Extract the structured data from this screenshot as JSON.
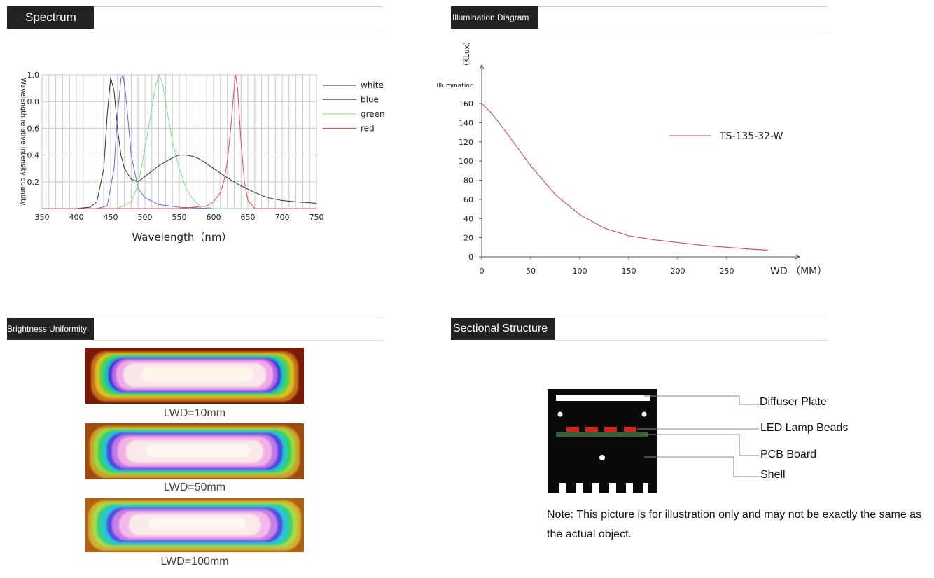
{
  "sections": {
    "spectrum": "Spectrum",
    "illumination": "Illumination Diagram",
    "uniformity": "Brightness Uniformity",
    "structure": "Sectional Structure"
  },
  "chart_data": [
    {
      "type": "line",
      "xlabel": "Wavelength（nm）",
      "ylabel": "Wavelength relative intensity quantity",
      "xlim": [
        350,
        750
      ],
      "ylim": [
        0,
        1.0
      ],
      "x_ticks": [
        "350",
        "400",
        "450",
        "500",
        "550",
        "600",
        "650",
        "700",
        "750"
      ],
      "y_ticks": [
        "1.0",
        "0.8",
        "0.6",
        "0.4",
        "0.2"
      ],
      "grid": true,
      "legend": "right",
      "series": [
        {
          "name": "white",
          "color": "#333333",
          "x": [
            350,
            400,
            420,
            430,
            440,
            445,
            450,
            455,
            460,
            465,
            470,
            480,
            490,
            500,
            510,
            520,
            530,
            540,
            550,
            560,
            570,
            580,
            600,
            620,
            640,
            660,
            680,
            700,
            720,
            750
          ],
          "y": [
            0,
            0,
            0.01,
            0.05,
            0.3,
            0.7,
            0.98,
            0.88,
            0.6,
            0.4,
            0.3,
            0.22,
            0.2,
            0.24,
            0.28,
            0.32,
            0.35,
            0.38,
            0.4,
            0.4,
            0.39,
            0.37,
            0.3,
            0.23,
            0.17,
            0.12,
            0.08,
            0.06,
            0.05,
            0.04
          ]
        },
        {
          "name": "blue",
          "color": "#6a6ad0",
          "x": [
            350,
            430,
            445,
            455,
            460,
            465,
            468,
            472,
            480,
            490,
            500,
            520,
            550,
            600,
            750
          ],
          "y": [
            0,
            0,
            0.02,
            0.3,
            0.7,
            0.97,
            1.0,
            0.85,
            0.4,
            0.15,
            0.08,
            0.03,
            0.01,
            0,
            0
          ]
        },
        {
          "name": "green",
          "color": "#7fe08a",
          "x": [
            350,
            460,
            480,
            490,
            500,
            510,
            515,
            520,
            525,
            530,
            540,
            550,
            560,
            570,
            580,
            600,
            750
          ],
          "y": [
            0,
            0,
            0.05,
            0.18,
            0.45,
            0.75,
            0.9,
            1.0,
            0.95,
            0.8,
            0.5,
            0.3,
            0.15,
            0.07,
            0.02,
            0,
            0
          ]
        },
        {
          "name": "red",
          "color": "#e05050",
          "x": [
            350,
            550,
            590,
            600,
            610,
            615,
            620,
            625,
            630,
            632,
            635,
            640,
            645,
            650,
            660,
            750
          ],
          "y": [
            0,
            0,
            0.02,
            0.05,
            0.12,
            0.2,
            0.35,
            0.6,
            0.9,
            1.0,
            0.9,
            0.5,
            0.2,
            0.06,
            0,
            0
          ]
        }
      ]
    },
    {
      "type": "line",
      "xlabel": "WD （MM）",
      "ylabel": "Illumination",
      "y_unit": "（KLux）",
      "xlim": [
        0,
        325
      ],
      "ylim": [
        0,
        160
      ],
      "x_ticks": [
        "0",
        "50",
        "100",
        "150",
        "200",
        "250"
      ],
      "y_ticks": [
        "0",
        "20",
        "40",
        "60",
        "80",
        "100",
        "120",
        "140",
        "160"
      ],
      "grid": false,
      "legend": "top-right",
      "series": [
        {
          "name": "TS-135-32-W",
          "color": "#c0504d",
          "x": [
            0,
            10,
            25,
            50,
            75,
            100,
            125,
            150,
            175,
            200,
            225,
            250,
            275,
            292
          ],
          "y": [
            160,
            150,
            130,
            95,
            65,
            44,
            30,
            22,
            18,
            15,
            12,
            10,
            8,
            7
          ]
        }
      ]
    }
  ],
  "uniformity": {
    "labels": [
      "LWD=10mm",
      "LWD=50mm",
      "LWD=100mm"
    ]
  },
  "structure": {
    "callouts": [
      "Diffuser Plate",
      "LED Lamp Beads",
      "PCB Board",
      "Shell"
    ],
    "note": "Note: This picture is for illustration only and may not be exactly the same as the actual object."
  }
}
